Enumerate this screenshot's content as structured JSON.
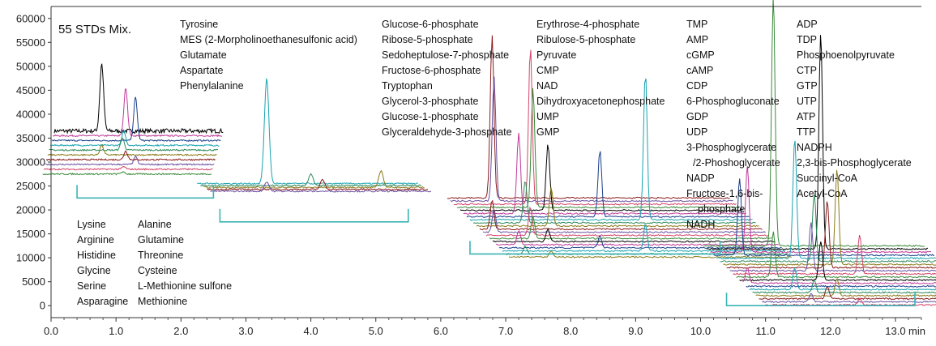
{
  "chart_data": {
    "type": "line",
    "title": "55 STDs Mix.",
    "xlabel": "min",
    "ylabel": "",
    "xlim": [
      0,
      13.4
    ],
    "ylim": [
      -2500,
      62500
    ],
    "x_ticks": [
      0.0,
      1.0,
      2.0,
      3.0,
      4.0,
      5.0,
      6.0,
      7.0,
      8.0,
      9.0,
      10.0,
      11.0,
      12.0,
      13.0
    ],
    "x_tick_labels": [
      "0.0",
      "1.0",
      "2.0",
      "3.0",
      "4.0",
      "5.0",
      "6.0",
      "7.0",
      "8.0",
      "9.0",
      "10.0",
      "11.0",
      "12.0",
      "13.0"
    ],
    "y_ticks": [
      0,
      5000,
      10000,
      15000,
      20000,
      25000,
      30000,
      35000,
      40000,
      45000,
      50000,
      55000,
      60000
    ],
    "y_tick_labels": [
      "0",
      "5000",
      "10000",
      "15000",
      "20000",
      "25000",
      "30000",
      "35000",
      "40000",
      "45000",
      "50000",
      "55000",
      "60000"
    ],
    "grid": false,
    "colors": [
      "#000000",
      "#c0399a",
      "#1a3f8a",
      "#17a3b0",
      "#2d8a5b",
      "#8a7a1a",
      "#8b1a1a",
      "#6a4fa0",
      "#d4446a",
      "#3a8a3a"
    ],
    "groups": [
      {
        "x_range": [
          0.4,
          2.5
        ],
        "peak_x": [
          0.78,
          1.15,
          1.3,
          1.12,
          1.1
        ],
        "peak_height": [
          11000,
          10000,
          9000,
          3000,
          2500
        ],
        "trace_count": 10,
        "baseline_start": 36500,
        "baseline_step": -1000,
        "labels_col1": [
          "Lysine",
          "Arginine",
          "Histidine",
          "Glycine",
          "Serine",
          "Asparagine"
        ],
        "labels_col2": [
          "Alanine",
          "Glutamine",
          "Threonine",
          "Cysteine",
          "L-Methionine sulfone",
          "Methionine"
        ]
      },
      {
        "x_range": [
          2.6,
          5.5
        ],
        "peak_x": [
          3.32,
          4.0,
          5.08,
          4.18,
          3.32
        ],
        "peak_height": [
          22000,
          2500,
          3500,
          2000,
          2000
        ],
        "trace_count": 5,
        "baseline_start": 25500,
        "baseline_step": -400,
        "labels": [
          "Tyrosine",
          "MES (2-Morpholinoethanesulfonic acid)",
          "Glutamate",
          "Aspartate",
          "Phenylalanine"
        ]
      },
      {
        "x_range": [
          6.45,
          10.3
        ],
        "peak_x": [
          6.79,
          6.82,
          7.38,
          7.42,
          7.65,
          7.2,
          8.45,
          9.15,
          7.3,
          7.7
        ],
        "peak_height": [
          34000,
          26000,
          33000,
          25000,
          14000,
          17000,
          14000,
          31000,
          9000,
          8000
        ],
        "trace_count": 20,
        "baseline_start": 22500,
        "baseline_step": -650,
        "labels_col1": [
          "Glucose-6-phosphate",
          "Ribose-5-phosphate",
          "Sedoheptulose-7-phosphate",
          "Fructose-6-phosphate",
          "Tryptophan",
          "Glycerol-3-phosphate",
          "Glucose-1-phosphate",
          "Glyceraldehyde-3-phosphate"
        ],
        "labels_col2": [
          "Erythrose-4-phosphate",
          "Ribulose-5-phosphate",
          "Pyruvate",
          "CMP",
          "NAD",
          "Dihydroxyacetonephosphate",
          "UMP",
          "GMP"
        ]
      },
      {
        "x_range": [
          10.4,
          13.3
        ],
        "peak_x": [
          11.12,
          11.85,
          10.72,
          10.6,
          11.45,
          11.75,
          12.1,
          11.95,
          11.7,
          12.45
        ],
        "peak_height": [
          52000,
          45000,
          18000,
          16000,
          25000,
          14000,
          20000,
          14000,
          10000,
          8000
        ],
        "trace_count": 20,
        "baseline_start": 12500,
        "baseline_step": -650,
        "labels_col1": [
          "TMP",
          "AMP",
          "cGMP",
          "cAMP",
          "CDP",
          "6-Phosphogluconate",
          "GDP",
          "UDP",
          "3-Phosphoglycerate",
          "/2-Phoshoglycerate",
          "NADP",
          "Fructose-1,6-bis-",
          "phosphate",
          "NADH"
        ],
        "labels_col2": [
          "ADP",
          "TDP",
          "Phosphoenolpyruvate",
          "CTP",
          "GTP",
          "UTP",
          "ATP",
          "TTP",
          "NADPH",
          "2,3-bis-Phosphoglycerate",
          "Succinyl-CoA",
          "Acetyl-CoA"
        ]
      }
    ]
  }
}
